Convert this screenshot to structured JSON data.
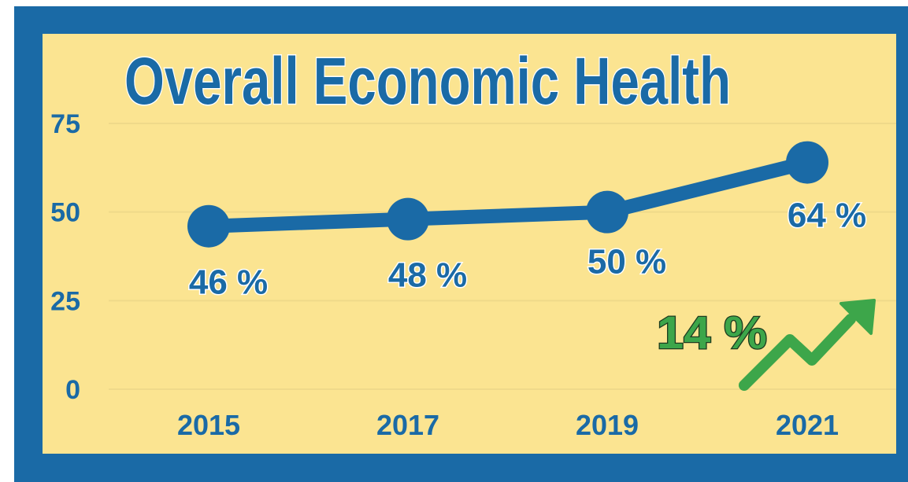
{
  "chart_data": {
    "type": "line",
    "title": "Overall Economic Health",
    "categories": [
      "2015",
      "2017",
      "2019",
      "2021"
    ],
    "series": [
      {
        "values": [
          46,
          48,
          50,
          64
        ]
      }
    ],
    "data_labels": [
      "46 %",
      "48 %",
      "50 %",
      "64 %"
    ],
    "yticks": [
      "0",
      "25",
      "50",
      "75"
    ],
    "ylim": [
      0,
      75
    ],
    "grid": true,
    "annotation": {
      "text": "14 %",
      "icon": "trend-up-arrow-icon"
    }
  },
  "colors": {
    "frame": "#1a6aa6",
    "panel": "#fbe491",
    "line": "#1a6aa6",
    "accent": "#3da64a",
    "grid": "#efd98a"
  }
}
